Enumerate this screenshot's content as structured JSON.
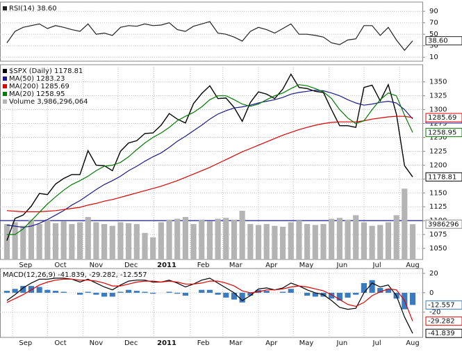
{
  "chart_data": [
    {
      "type": "line",
      "ylim": [
        3,
        106
      ],
      "yticks": [
        10,
        30,
        50,
        70,
        90
      ],
      "grid": true,
      "series": [
        {
          "name": "RSI(14) 38.60",
          "color": "#222222",
          "tag_label": "38.60",
          "values": [
            35,
            55,
            62,
            65,
            68,
            60,
            65,
            62,
            58,
            55,
            68,
            50,
            52,
            48,
            62,
            65,
            64,
            68,
            65,
            66,
            70,
            58,
            55,
            64,
            68,
            72,
            52,
            50,
            45,
            38,
            55,
            62,
            58,
            52,
            60,
            68,
            50,
            50,
            48,
            45,
            35,
            32,
            40,
            42,
            65,
            65,
            48,
            62,
            40,
            22,
            38.6
          ]
        }
      ]
    },
    {
      "type": "line",
      "xlim": [
        -0.85,
        51.2
      ],
      "ylim": [
        1030,
        1381
      ],
      "yticks": [
        1050,
        1075,
        1100,
        1125,
        1150,
        1175,
        1200,
        1225,
        1250,
        1275,
        1300,
        1325,
        1350
      ],
      "y2lim": [
        0,
        22000000
      ],
      "grid": true,
      "hline": 1100,
      "xticks": [
        {
          "value": 0.7,
          "label": "Sep"
        },
        {
          "value": 5,
          "label": "Oct"
        },
        {
          "value": 9.4,
          "label": "Nov"
        },
        {
          "value": 13.7,
          "label": "Dec"
        },
        {
          "value": 18.1,
          "label": "2011"
        },
        {
          "value": 22.6,
          "label": "Feb"
        },
        {
          "value": 26.6,
          "label": "Mar"
        },
        {
          "value": 31,
          "label": "Apr"
        },
        {
          "value": 35.3,
          "label": "May"
        },
        {
          "value": 39.7,
          "label": "Jun"
        },
        {
          "value": 44,
          "label": "Jul"
        },
        {
          "value": 48.4,
          "label": "Aug"
        }
      ],
      "series": [
        {
          "name": "$SPX (Daily) 1178.81",
          "color": "#000000",
          "values": [
            1064,
            1104,
            1110,
            1126,
            1149,
            1147,
            1166,
            1176,
            1183,
            1183,
            1226,
            1200,
            1199,
            1190,
            1225,
            1240,
            1244,
            1257,
            1258,
            1272,
            1293,
            1283,
            1276,
            1311,
            1329,
            1343,
            1320,
            1321,
            1304,
            1279,
            1313,
            1332,
            1328,
            1320,
            1337,
            1364,
            1340,
            1338,
            1333,
            1331,
            1300,
            1271,
            1271,
            1268,
            1340,
            1344,
            1316,
            1345,
            1292,
            1199,
            1178.81
          ]
        },
        {
          "name": "MA(50) 1283.23",
          "color": "#1a1a8c",
          "values": [
            1092,
            1090,
            1088,
            1090,
            1095,
            1102,
            1110,
            1118,
            1128,
            1136,
            1146,
            1156,
            1165,
            1172,
            1180,
            1190,
            1198,
            1207,
            1215,
            1222,
            1232,
            1243,
            1252,
            1262,
            1272,
            1283,
            1292,
            1298,
            1303,
            1305,
            1308,
            1312,
            1315,
            1318,
            1322,
            1328,
            1331,
            1333,
            1335,
            1334,
            1330,
            1325,
            1318,
            1312,
            1308,
            1310,
            1313,
            1315,
            1312,
            1300,
            1283.23
          ]
        },
        {
          "name": "MA(200) 1285.69",
          "color": "#e00000",
          "values": [
            1118,
            1117,
            1116,
            1116,
            1116,
            1117,
            1118,
            1120,
            1122,
            1124,
            1128,
            1131,
            1135,
            1138,
            1142,
            1146,
            1150,
            1154,
            1158,
            1162,
            1167,
            1172,
            1178,
            1184,
            1190,
            1196,
            1203,
            1210,
            1217,
            1224,
            1230,
            1236,
            1242,
            1248,
            1254,
            1259,
            1264,
            1268,
            1272,
            1275,
            1277,
            1278,
            1278,
            1278,
            1280,
            1283,
            1285,
            1287,
            1288,
            1288,
            1285.69
          ]
        },
        {
          "name": "MA(20) 1258.95",
          "color": "#007a00",
          "values": [
            1075,
            1075,
            1085,
            1100,
            1115,
            1130,
            1143,
            1155,
            1165,
            1172,
            1180,
            1190,
            1198,
            1200,
            1205,
            1215,
            1228,
            1240,
            1250,
            1258,
            1268,
            1280,
            1288,
            1295,
            1305,
            1318,
            1325,
            1325,
            1318,
            1310,
            1306,
            1310,
            1318,
            1325,
            1330,
            1338,
            1345,
            1343,
            1338,
            1332,
            1320,
            1300,
            1285,
            1275,
            1280,
            1300,
            1318,
            1330,
            1325,
            1290,
            1258.95
          ]
        },
        {
          "name": "Volume 3,986,296,064",
          "color": "#b4b4b4",
          "type": "bar",
          "axis": "y2",
          "values": [
            4000000,
            4200000,
            3800000,
            4500000,
            4000000,
            4500000,
            4100000,
            4300000,
            4000000,
            4200000,
            4800000,
            4200000,
            4000000,
            3800000,
            4200000,
            4100000,
            4000000,
            3000000,
            2500000,
            4200000,
            4500000,
            4600000,
            4800000,
            4000000,
            4500000,
            4300000,
            4600000,
            4700000,
            4500000,
            5500000,
            4000000,
            3900000,
            4000000,
            3800000,
            3700000,
            4200000,
            4400000,
            4000000,
            3900000,
            4000000,
            4600000,
            4700000,
            4500000,
            5000000,
            4200000,
            3800000,
            3900000,
            4200000,
            5000000,
            8000000,
            3986296
          ]
        }
      ]
    },
    {
      "type": "line",
      "title": "MACD(12,26,9) -41.839, -29.282, -12.557",
      "ylim": [
        -46,
        25
      ],
      "yticks": [
        -20,
        0,
        20
      ],
      "grid": true,
      "xticks": [
        {
          "value": 0.7,
          "label": "Sep"
        },
        {
          "value": 5,
          "label": "Oct"
        },
        {
          "value": 9.4,
          "label": "Nov"
        },
        {
          "value": 13.7,
          "label": "Dec"
        },
        {
          "value": 18.1,
          "label": "2011"
        },
        {
          "value": 22.6,
          "label": "Feb"
        },
        {
          "value": 26.6,
          "label": "Mar"
        },
        {
          "value": 31,
          "label": "Apr"
        },
        {
          "value": 35.3,
          "label": "May"
        },
        {
          "value": 39.7,
          "label": "Jun"
        },
        {
          "value": 44,
          "label": "Jul"
        },
        {
          "value": 48.4,
          "label": "Aug"
        }
      ],
      "series": [
        {
          "color": "#3a7bbf",
          "type": "bar",
          "values": [
            2,
            4,
            7,
            7,
            6,
            3,
            2,
            1,
            0,
            -2,
            1,
            -2,
            -4,
            -4,
            1,
            3,
            2,
            1,
            -1,
            0,
            1,
            -1,
            -3,
            0,
            3,
            3,
            -2,
            -5,
            -7,
            -10,
            -3,
            3,
            2,
            0,
            1,
            4,
            0,
            -3,
            -4,
            -4,
            -6,
            -8,
            -5,
            -2,
            10,
            13,
            5,
            4,
            -6,
            -17,
            -12.557
          ]
        },
        {
          "color": "#000000",
          "values": [
            -8,
            -2,
            5,
            10,
            14,
            14,
            15,
            15,
            14,
            11,
            14,
            10,
            6,
            3,
            8,
            12,
            13,
            13,
            11,
            11,
            13,
            10,
            6,
            9,
            13,
            15,
            10,
            5,
            0,
            -8,
            -3,
            4,
            5,
            3,
            5,
            10,
            7,
            3,
            0,
            -2,
            -8,
            -15,
            -17,
            -16,
            0,
            10,
            6,
            8,
            -3,
            -25,
            -41.839
          ]
        },
        {
          "color": "#e00000",
          "values": [
            -10,
            -6,
            -2,
            3,
            8,
            11,
            13,
            14,
            14,
            13,
            13,
            12,
            10,
            7,
            7,
            9,
            11,
            12,
            12,
            11,
            12,
            11,
            9,
            9,
            10,
            12,
            12,
            10,
            7,
            2,
            0,
            1,
            3,
            3,
            4,
            6,
            7,
            6,
            4,
            2,
            -2,
            -7,
            -12,
            -14,
            -10,
            -3,
            1,
            4,
            3,
            -8,
            -29.282
          ]
        }
      ]
    }
  ]
}
